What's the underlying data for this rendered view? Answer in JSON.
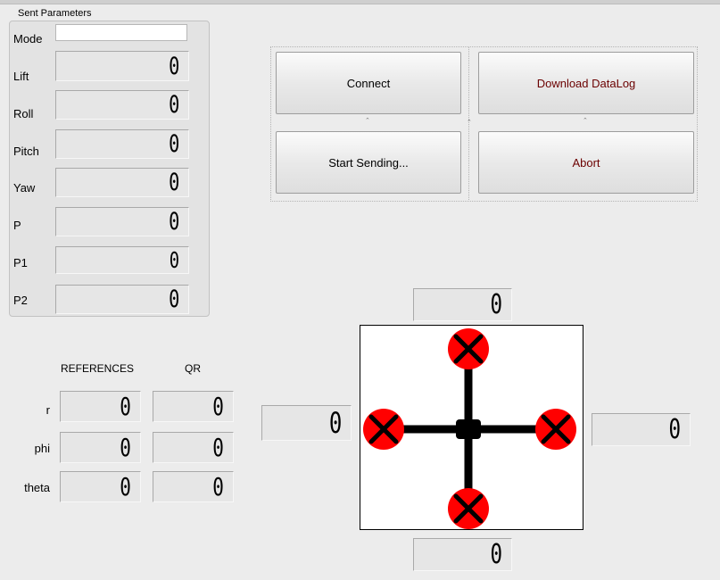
{
  "sent_parameters": {
    "title": "Sent Parameters",
    "mode_label": "Mode",
    "mode_value": "",
    "rows": [
      {
        "label": "Lift",
        "value": "0"
      },
      {
        "label": "Roll",
        "value": "0"
      },
      {
        "label": "Pitch",
        "value": "0"
      },
      {
        "label": "Yaw",
        "value": "0"
      },
      {
        "label": "P",
        "value": "0"
      },
      {
        "label": "P1",
        "value": "0"
      },
      {
        "label": "P2",
        "value": "0"
      }
    ]
  },
  "buttons": {
    "connect": "Connect",
    "download": "Download DataLog",
    "start": "Start Sending...",
    "abort": "Abort"
  },
  "references": {
    "header_ref": "REFERENCES",
    "header_qr": "QR",
    "rows": [
      {
        "label": "r",
        "ref": "0",
        "qr": "0"
      },
      {
        "label": "phi",
        "ref": "0",
        "qr": "0"
      },
      {
        "label": "theta",
        "ref": "0",
        "qr": "0"
      }
    ]
  },
  "motors": {
    "front": "0",
    "left": "0",
    "right": "0",
    "back": "0"
  },
  "colors": {
    "motor_fill": "#ff0000",
    "frame": "#000000",
    "button_text_red": "#6b0000"
  }
}
